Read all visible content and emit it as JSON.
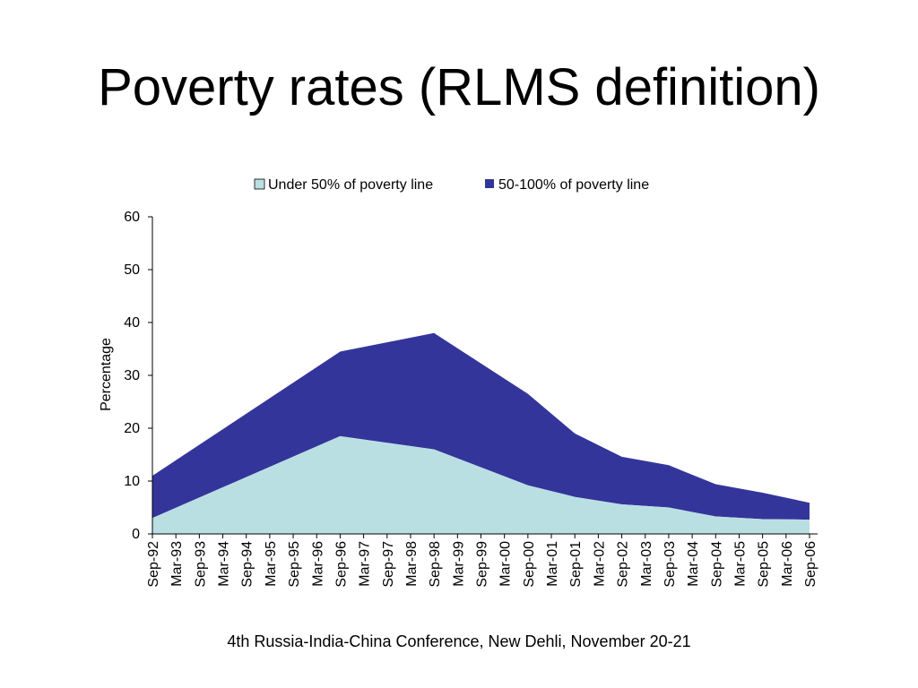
{
  "slide": {
    "title": "Poverty rates (RLMS definition)",
    "footer": "4th Russia-India-China Conference, New Dehli, November 20-21"
  },
  "colors": {
    "under50": "#b9dfe3",
    "from50to100": "#34359a"
  },
  "chart_data": {
    "type": "area",
    "stacked": true,
    "title": "",
    "xlabel": "",
    "ylabel": "Percentage",
    "ylim": [
      0,
      60
    ],
    "yticks": [
      0,
      10,
      20,
      30,
      40,
      50,
      60
    ],
    "legend": "top",
    "grid": false,
    "x_ticks": [
      "Sep-92",
      "Mar-93",
      "Sep-93",
      "Mar-94",
      "Sep-94",
      "Mar-95",
      "Sep-95",
      "Mar-96",
      "Sep-96",
      "Mar-97",
      "Sep-97",
      "Mar-98",
      "Sep-98",
      "Mar-99",
      "Sep-99",
      "Mar-00",
      "Sep-00",
      "Mar-01",
      "Sep-01",
      "Mar-02",
      "Sep-02",
      "Mar-03",
      "Sep-03",
      "Mar-04",
      "Sep-04",
      "Mar-05",
      "Sep-05",
      "Mar-06",
      "Sep-06"
    ],
    "x": [
      "Sep-92",
      "Sep-96",
      "Sep-98",
      "Sep-00",
      "Sep-01",
      "Sep-02",
      "Sep-03",
      "Sep-04",
      "Sep-05",
      "Sep-06"
    ],
    "series": [
      {
        "name": "Under 50% of poverty line",
        "values": [
          3.0,
          18.5,
          16.0,
          9.2,
          7.0,
          5.6,
          5.0,
          3.3,
          2.8,
          2.7
        ]
      },
      {
        "name": "50-100% of poverty line",
        "values": [
          8.0,
          16.0,
          22.0,
          17.3,
          12.0,
          9.0,
          8.0,
          6.1,
          5.0,
          3.2
        ]
      }
    ]
  }
}
